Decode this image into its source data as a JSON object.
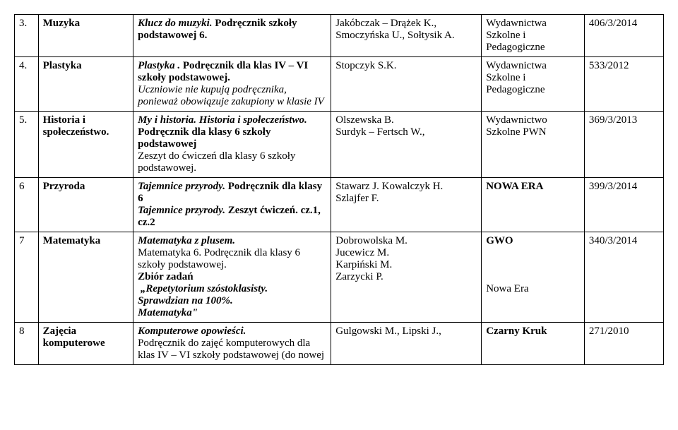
{
  "rows": [
    {
      "num": "3.",
      "subject": "Muzyka",
      "text_html": "<span class='bi'>Klucz do muzyki.</span> <span class='b'>Podręcznik szkoły podstawowej 6.</span>",
      "authors": "Jakóbczak – Drążek K., Smoczyńska U., Sołtysik A.",
      "publisher": "Wydawnictwa Szkolne i Pedagogiczne",
      "code": "406/3/2014"
    },
    {
      "num": "4.",
      "subject": "Plastyka",
      "text_html": "<span class='bi'>Plastyka .</span> <span class='b'>Podręcznik dla klas IV – VI szkoły podstawowej.</span><br><span class='i'>Uczniowie nie kupują podręcznika, ponieważ obowiązuje zakupiony w klasie IV</span>",
      "authors": "Stopczyk S.K.",
      "publisher": "Wydawnictwa Szkolne i Pedagogiczne",
      "code": "533/2012"
    },
    {
      "num": "5.",
      "subject_html": "<span class='b'>Historia i społeczeństwo.</span>",
      "text_html": "<span class='bi'>My i historia. Historia i społeczeństwo. </span><span class='b'>Podręcznik dla klasy 6 szkoły podstawowej</span><br>Zeszyt do ćwiczeń dla klasy 6 szkoły podstawowej.",
      "authors": "Olszewska B.\nSurdyk – Fertsch W.,",
      "publisher": "Wydawnictwo Szkolne PWN",
      "code": "369/3/2013"
    },
    {
      "num": "6",
      "subject": "Przyroda",
      "text_html": "<span class='bi'>Tajemnice przyrody. </span><span class='b'>Podręcznik dla klasy 6</span><br><span class='bi'>Tajemnice przyrody.</span> <span class='b'>Zeszyt ćwiczeń. cz.1, cz.2</span>",
      "authors": "Stawarz J. Kowalczyk H. Szlajfer F.",
      "publisher_html": "<span class='b'>NOWA ERA</span>",
      "code": "399/3/2014"
    },
    {
      "num": "7",
      "subject": "Matematyka",
      "text_html": "<span class='bi'>Matematyka z plusem.</span><br>Matematyka 6. Podręcznik dla klasy 6 szkoły podstawowej.<br><span class='b'>Zbiór zadań</span><br><span class='bi'>&nbsp;„Repetytorium szóstoklasisty.</span><br><span class='bi'>Sprawdzian na 100%.</span><br><span class='bi'>Matematyka&quot;</span>",
      "authors": "Dobrowolska M.\nJucewicz M.\nKarpiński M.\nZarzycki P.",
      "publisher_html": "<span class='b'>GWO</span><br><br><br><br>Nowa Era",
      "code": "340/3/2014"
    },
    {
      "num": "8",
      "subject_html": "<span class='b'>Zajęcia komputerowe</span>",
      "text_html": "<span class='bi'>Komputerowe opowieści.</span><br>Podręcznik do zajęć komputerowych dla klas IV – VI szkoły podstawowej (do nowej",
      "authors": "Gulgowski M., Lipski J.,",
      "publisher_html": "<span class='b'>Czarny Kruk</span>",
      "code": "271/2010"
    }
  ]
}
